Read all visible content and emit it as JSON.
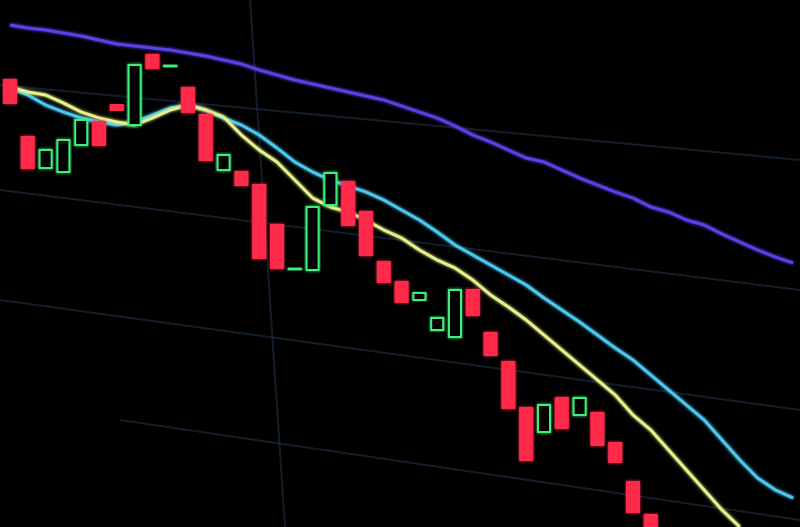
{
  "chart_data": {
    "type": "candlestick",
    "ylim": [
      0,
      527
    ],
    "up_color": "#3cf07a",
    "down_color": "#ff2a4a",
    "open": [
      447,
      390,
      359,
      355,
      382,
      405,
      422,
      402,
      472,
      460,
      439,
      412,
      357,
      355,
      342,
      302,
      257,
      257,
      322,
      345,
      315,
      265,
      245,
      227,
      197,
      190,
      237,
      194,
      165,
      119,
      95,
      129,
      112,
      114,
      84,
      45,
      12,
      null,
      null,
      null,
      null,
      null,
      null,
      null,
      null
    ],
    "high": [
      449,
      415,
      387,
      422,
      415,
      412,
      429,
      467,
      477,
      482,
      442,
      417,
      377,
      359,
      344,
      302,
      297,
      322,
      367,
      349,
      317,
      269,
      247,
      272,
      217,
      249,
      239,
      212,
      167,
      124,
      160,
      134,
      139,
      117,
      89,
      49,
      15,
      null,
      null,
      null,
      null,
      null,
      null,
      null,
      null
    ],
    "low": [
      397,
      357,
      335,
      342,
      367,
      364,
      407,
      399,
      452,
      432,
      327,
      362,
      352,
      335,
      265,
      255,
      189,
      252,
      317,
      299,
      232,
      207,
      212,
      225,
      112,
      187,
      205,
      167,
      115,
      65,
      92,
      67,
      107,
      79,
      59,
      12,
      0,
      null,
      null,
      null,
      null,
      null,
      null,
      null,
      null
    ],
    "close": [
      424,
      359,
      377,
      387,
      407,
      382,
      417,
      462,
      459,
      462,
      415,
      367,
      372,
      342,
      269,
      259,
      259,
      320,
      354,
      302,
      272,
      245,
      225,
      234,
      209,
      237,
      212,
      172,
      119,
      67,
      122,
      99,
      129,
      82,
      65,
      15,
      0,
      null,
      null,
      null,
      null,
      null,
      null,
      null,
      null
    ],
    "lines": [
      {
        "color": "#5a40e8",
        "values": [
          502,
          499,
          497,
          494,
          491,
          487,
          483,
          481,
          479,
          477,
          474,
          471,
          467,
          463,
          457,
          452,
          447,
          443,
          439,
          435,
          431,
          427,
          421,
          415,
          409,
          401,
          392,
          385,
          377,
          369,
          365,
          357,
          349,
          342,
          335,
          329,
          320,
          315,
          307,
          302,
          293,
          285,
          277,
          270,
          264
        ]
      },
      {
        "color": "#4cc8f0",
        "values": [
          439,
          432,
          422,
          415,
          409,
          405,
          402,
          405,
          412,
          419,
          422,
          417,
          409,
          402,
          392,
          379,
          365,
          355,
          347,
          341,
          335,
          327,
          317,
          307,
          295,
          282,
          272,
          262,
          252,
          242,
          229,
          217,
          205,
          192,
          179,
          167,
          152,
          137,
          122,
          107,
          87,
          67,
          49,
          37,
          29
        ]
      },
      {
        "color": "#e8f08a",
        "values": [
          440,
          435,
          432,
          424,
          415,
          409,
          405,
          402,
          409,
          417,
          422,
          417,
          410,
          392,
          377,
          365,
          347,
          329,
          320,
          315,
          307,
          297,
          289,
          277,
          267,
          259,
          247,
          232,
          220,
          207,
          192,
          177,
          162,
          147,
          132,
          112,
          97,
          77,
          57,
          37,
          17,
          0,
          null,
          null,
          null
        ]
      }
    ]
  }
}
